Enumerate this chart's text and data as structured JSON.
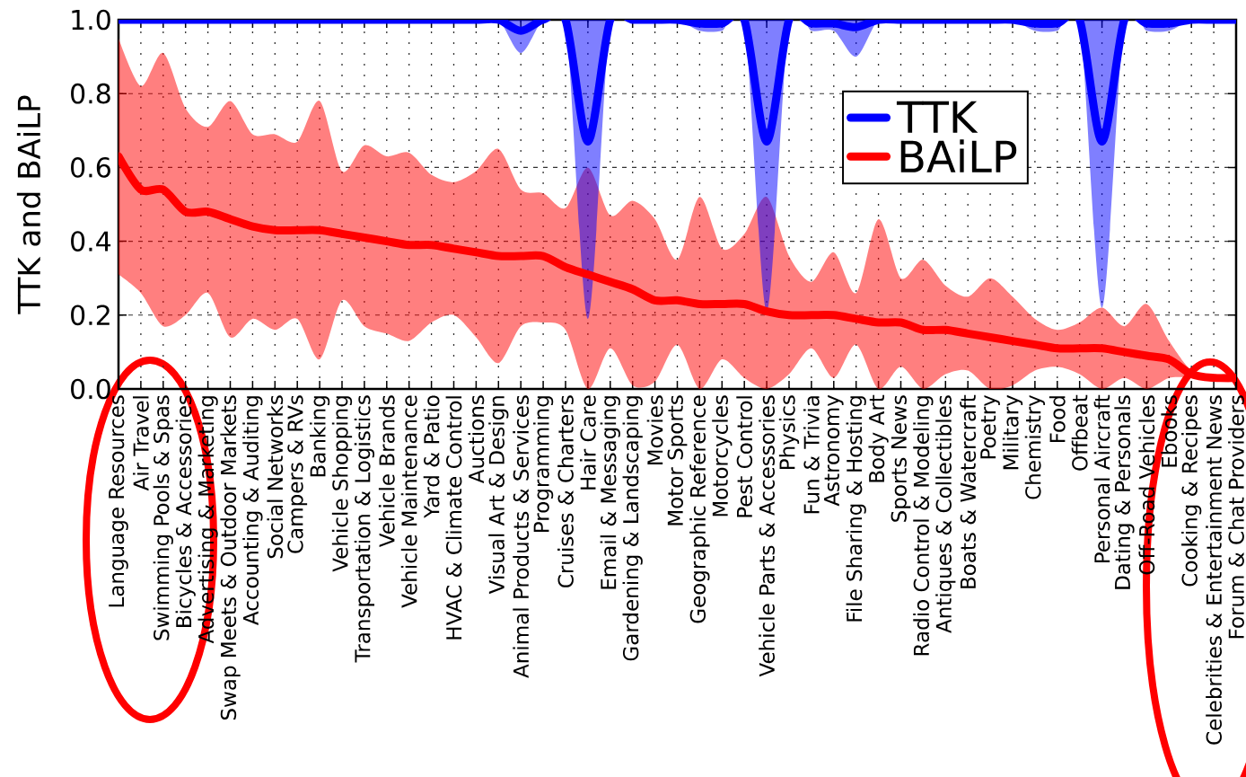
{
  "chart_data": {
    "type": "line",
    "ylabel": "TTK and BAiLP",
    "categories": [
      "Language Resources",
      "Air Travel",
      "Swimming Pools & Spas",
      "Bicycles & Accessories",
      "Advertising & Marketing",
      "Swap Meets & Outdoor Markets",
      "Accounting & Auditing",
      "Social Networks",
      "Campers & RVs",
      "Banking",
      "Vehicle Shopping",
      "Transportation & Logistics",
      "Vehicle Brands",
      "Vehicle Maintenance",
      "Yard & Patio",
      "HVAC & Climate Control",
      "Auctions",
      "Visual Art & Design",
      "Animal Products & Services",
      "Programming",
      "Cruises & Charters",
      "Hair Care",
      "Email & Messaging",
      "Gardening & Landscaping",
      "Movies",
      "Motor Sports",
      "Geographic Reference",
      "Motorcycles",
      "Pest Control",
      "Vehicle Parts & Accessories",
      "Physics",
      "Fun & Trivia",
      "Astronomy",
      "File Sharing & Hosting",
      "Body Art",
      "Sports News",
      "Radio Control & Modeling",
      "Antiques & Collectibles",
      "Boats & Watercraft",
      "Poetry",
      "Military",
      "Chemistry",
      "Food",
      "Offbeat",
      "Personal Aircraft",
      "Dating & Personals",
      "Off-Road Vehicles",
      "Ebooks",
      "Cooking & Recipes",
      "Celebrities & Entertainment News",
      "Forum & Chat Providers"
    ],
    "series": [
      {
        "name": "TTK",
        "color": "#0000ff",
        "values": [
          1,
          1,
          1,
          1,
          1,
          1,
          1,
          1,
          1,
          1,
          1,
          1,
          1,
          1,
          1,
          1,
          1,
          1,
          0.97,
          1,
          1,
          0.67,
          1,
          1,
          1,
          1,
          0.99,
          0.99,
          1,
          0.67,
          1,
          0.99,
          0.99,
          0.98,
          1,
          1,
          1,
          1,
          1,
          1,
          1,
          0.99,
          0.99,
          1,
          0.67,
          1,
          0.99,
          0.99,
          1,
          1,
          1
        ],
        "lower": [
          1,
          1,
          1,
          1,
          1,
          1,
          1,
          1,
          1,
          1,
          1,
          1,
          1,
          1,
          1,
          1,
          1,
          1,
          0.91,
          1,
          1,
          0.19,
          1,
          1,
          1,
          1,
          0.97,
          0.97,
          1,
          0.21,
          1,
          0.97,
          0.97,
          0.9,
          1,
          1,
          1,
          1,
          1,
          1,
          1,
          0.97,
          0.97,
          1,
          0.22,
          1,
          0.97,
          0.97,
          1,
          1,
          1
        ],
        "upper": [
          1,
          1,
          1,
          1,
          1,
          1,
          1,
          1,
          1,
          1,
          1,
          1,
          1,
          1,
          1,
          1,
          1,
          1,
          1,
          1,
          1,
          1,
          1,
          1,
          1,
          1,
          1,
          1,
          1,
          1,
          1,
          1,
          1,
          1,
          1,
          1,
          1,
          1,
          1,
          1,
          1,
          1,
          1,
          1,
          1,
          1,
          1,
          1,
          1,
          1,
          1
        ]
      },
      {
        "name": "BAiLP",
        "color": "#ff0000",
        "values": [
          0.63,
          0.54,
          0.54,
          0.48,
          0.48,
          0.46,
          0.44,
          0.43,
          0.43,
          0.43,
          0.42,
          0.41,
          0.4,
          0.39,
          0.39,
          0.38,
          0.37,
          0.36,
          0.36,
          0.36,
          0.33,
          0.31,
          0.29,
          0.27,
          0.24,
          0.24,
          0.23,
          0.23,
          0.23,
          0.21,
          0.2,
          0.2,
          0.2,
          0.19,
          0.18,
          0.18,
          0.16,
          0.16,
          0.15,
          0.14,
          0.13,
          0.12,
          0.11,
          0.11,
          0.11,
          0.1,
          0.09,
          0.08,
          0.04,
          0.03,
          0.03
        ],
        "lower": [
          0.31,
          0.26,
          0.17,
          0.2,
          0.26,
          0.14,
          0.19,
          0.16,
          0.19,
          0.08,
          0.24,
          0.17,
          0.15,
          0.13,
          0.18,
          0.2,
          0.14,
          0.07,
          0.17,
          0.18,
          0.16,
          0,
          0.11,
          0.01,
          0.02,
          0.12,
          0,
          0.08,
          0.03,
          0,
          0.04,
          0.11,
          0.03,
          0.12,
          0,
          0.06,
          0,
          0.04,
          0.05,
          0,
          0.01,
          0.05,
          0.06,
          0.04,
          0,
          0.03,
          0,
          0.03,
          0.03,
          0.02,
          0.02
        ],
        "upper": [
          0.95,
          0.82,
          0.91,
          0.76,
          0.71,
          0.78,
          0.69,
          0.69,
          0.67,
          0.78,
          0.59,
          0.66,
          0.63,
          0.64,
          0.58,
          0.56,
          0.59,
          0.65,
          0.54,
          0.53,
          0.49,
          0.6,
          0.47,
          0.51,
          0.46,
          0.35,
          0.52,
          0.38,
          0.42,
          0.52,
          0.36,
          0.29,
          0.37,
          0.26,
          0.46,
          0.3,
          0.35,
          0.28,
          0.25,
          0.3,
          0.25,
          0.19,
          0.16,
          0.18,
          0.22,
          0.17,
          0.23,
          0.13,
          0.05,
          0.04,
          0.04
        ]
      }
    ],
    "ylim": [
      0,
      1
    ],
    "yticks": [
      {
        "value": 0,
        "label": "0.0"
      },
      {
        "value": 0.2,
        "label": "0.2"
      },
      {
        "value": 0.4,
        "label": "0.4"
      },
      {
        "value": 0.6,
        "label": "0.6"
      },
      {
        "value": 0.8,
        "label": "0.8"
      },
      {
        "value": 1,
        "label": "1.0"
      }
    ],
    "grid": true,
    "legend": "right"
  }
}
